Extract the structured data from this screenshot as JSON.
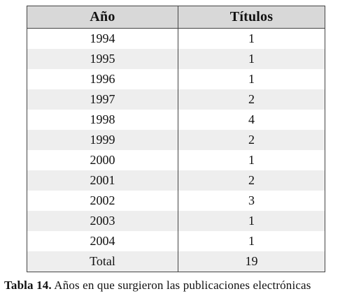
{
  "table": {
    "headers": [
      "Año",
      "Títulos"
    ],
    "rows": [
      [
        "1994",
        "1"
      ],
      [
        "1995",
        "1"
      ],
      [
        "1996",
        "1"
      ],
      [
        "1997",
        "2"
      ],
      [
        "1998",
        "4"
      ],
      [
        "1999",
        "2"
      ],
      [
        "2000",
        "1"
      ],
      [
        "2001",
        "2"
      ],
      [
        "2002",
        "3"
      ],
      [
        "2003",
        "1"
      ],
      [
        "2004",
        "1"
      ],
      [
        "Total",
        "19"
      ]
    ]
  },
  "caption": {
    "label": "Tabla 14.",
    "text": "Años en que surgieron las publicaciones electrónicas"
  },
  "colors": {
    "header_bg": "#d8d8d8",
    "stripe_bg": "#eeeeee",
    "border": "#444444"
  }
}
